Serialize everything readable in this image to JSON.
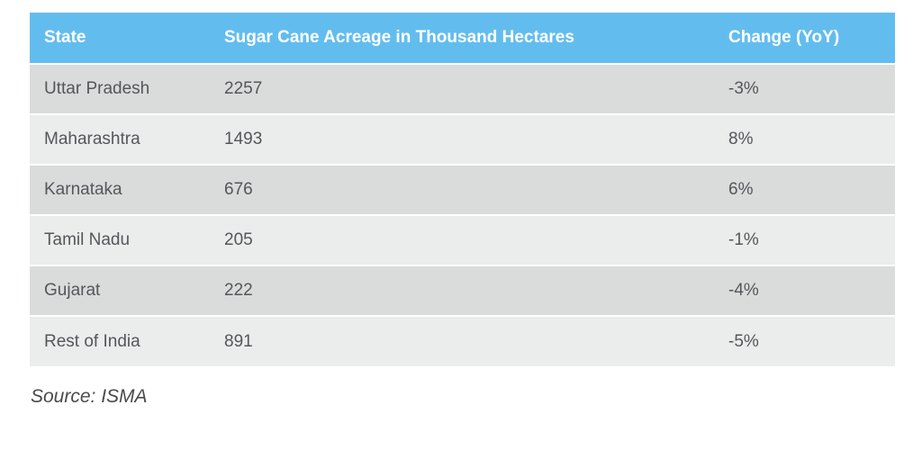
{
  "colors": {
    "header_bg": "#62bdee",
    "row_odd": "#dadbdb",
    "row_even": "#ebecec",
    "header_text": "#ffffff",
    "cell_text": "#54575a",
    "source_text": "#4a4a4a",
    "page_bg": "#ffffff"
  },
  "table": {
    "columns": [
      "State",
      "Sugar Cane Acreage in Thousand Hectares",
      "Change (YoY)"
    ],
    "rows": [
      {
        "state": "Uttar Pradesh",
        "acreage": "2257",
        "change": "-3%"
      },
      {
        "state": "Maharashtra",
        "acreage": "1493",
        "change": "8%"
      },
      {
        "state": "Karnataka",
        "acreage": "676",
        "change": "6%"
      },
      {
        "state": "Tamil Nadu",
        "acreage": "205",
        "change": "-1%"
      },
      {
        "state": "Gujarat",
        "acreage": "222",
        "change": "-4%"
      },
      {
        "state": "Rest of India",
        "acreage": "891",
        "change": "-5%"
      }
    ]
  },
  "source": "Source: ISMA",
  "chart_data": {
    "type": "table",
    "title": "",
    "columns": [
      "State",
      "Sugar Cane Acreage in Thousand Hectares",
      "Change (YoY)"
    ],
    "rows": [
      [
        "Uttar Pradesh",
        2257,
        "-3%"
      ],
      [
        "Maharashtra",
        1493,
        "8%"
      ],
      [
        "Karnataka",
        676,
        "6%"
      ],
      [
        "Tamil Nadu",
        205,
        "-1%"
      ],
      [
        "Gujarat",
        222,
        "-4%"
      ],
      [
        "Rest of India",
        891,
        "-5%"
      ]
    ],
    "acreage_values": [
      2257,
      1493,
      676,
      205,
      222,
      891
    ],
    "change_yoy_percent": [
      -3,
      8,
      6,
      -1,
      -4,
      -5
    ],
    "source": "Source: ISMA"
  }
}
